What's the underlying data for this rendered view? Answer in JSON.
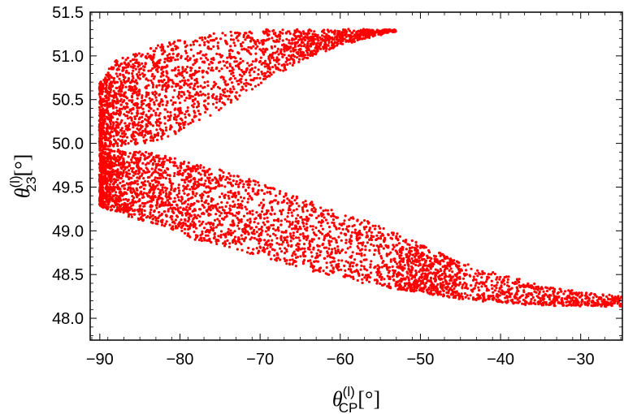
{
  "chart_data": {
    "type": "scatter",
    "title": "",
    "xlabel": {
      "symbol": "θ",
      "superscript": "(l)",
      "subscript": "CP",
      "unit": "[°]"
    },
    "ylabel": {
      "symbol": "θ",
      "superscript": "(l)",
      "subscript": "23",
      "unit": "[°]"
    },
    "xlim": [
      -91.2,
      -24.8
    ],
    "ylim": [
      47.75,
      51.5
    ],
    "xticks": [
      -90,
      -80,
      -70,
      -60,
      -50,
      -40,
      -30
    ],
    "xtick_labels": [
      "−90",
      "−80",
      "−70",
      "−60",
      "−50",
      "−40",
      "−30"
    ],
    "yticks": [
      48.0,
      48.5,
      49.0,
      49.5,
      50.0,
      50.5,
      51.0,
      51.5
    ],
    "ytick_labels": [
      "48.0",
      "48.5",
      "49.0",
      "49.5",
      "50.0",
      "50.5",
      "51.0",
      "51.5"
    ],
    "grid": false,
    "legend": "none",
    "marker_color": "#ff0000",
    "point_count": 6000,
    "region": {
      "description_points": "upper branch x from -90 to -53, y up to 51.3; lower branch x from -90 to -25, y down to 48.15; gap near x=-72, y=50",
      "upper_boundary": [
        [
          -90,
          50.7
        ],
        [
          -88,
          50.95
        ],
        [
          -85,
          51.05
        ],
        [
          -82,
          51.15
        ],
        [
          -78,
          51.22
        ],
        [
          -75,
          51.27
        ],
        [
          -72,
          51.3
        ],
        [
          -65,
          51.3
        ],
        [
          -60,
          51.3
        ],
        [
          -56,
          51.3
        ],
        [
          -53,
          51.3
        ]
      ],
      "upper_branch_inner": [
        [
          -90,
          49.95
        ],
        [
          -84,
          50.0
        ],
        [
          -80,
          50.12
        ],
        [
          -76,
          50.32
        ],
        [
          -72,
          50.55
        ],
        [
          -68,
          50.78
        ],
        [
          -64,
          50.98
        ],
        [
          -60,
          51.12
        ],
        [
          -56,
          51.22
        ],
        [
          -53,
          51.28
        ]
      ],
      "lower_branch_inner": [
        [
          -90,
          49.95
        ],
        [
          -84,
          49.9
        ],
        [
          -80,
          49.82
        ],
        [
          -76,
          49.72
        ],
        [
          -72,
          49.62
        ],
        [
          -68,
          49.48
        ],
        [
          -64,
          49.35
        ],
        [
          -60,
          49.22
        ],
        [
          -55,
          49.05
        ],
        [
          -50,
          48.85
        ],
        [
          -45,
          48.65
        ],
        [
          -40,
          48.5
        ],
        [
          -35,
          48.38
        ],
        [
          -30,
          48.3
        ],
        [
          -25,
          48.25
        ]
      ],
      "lower_boundary": [
        [
          -90,
          49.28
        ],
        [
          -86,
          49.15
        ],
        [
          -82,
          49.05
        ],
        [
          -78,
          48.9
        ],
        [
          -74,
          48.8
        ],
        [
          -70,
          48.7
        ],
        [
          -66,
          48.6
        ],
        [
          -62,
          48.5
        ],
        [
          -58,
          48.42
        ],
        [
          -54,
          48.35
        ],
        [
          -50,
          48.3
        ],
        [
          -45,
          48.22
        ],
        [
          -40,
          48.18
        ],
        [
          -35,
          48.15
        ],
        [
          -30,
          48.14
        ],
        [
          -25,
          48.14
        ]
      ]
    }
  }
}
